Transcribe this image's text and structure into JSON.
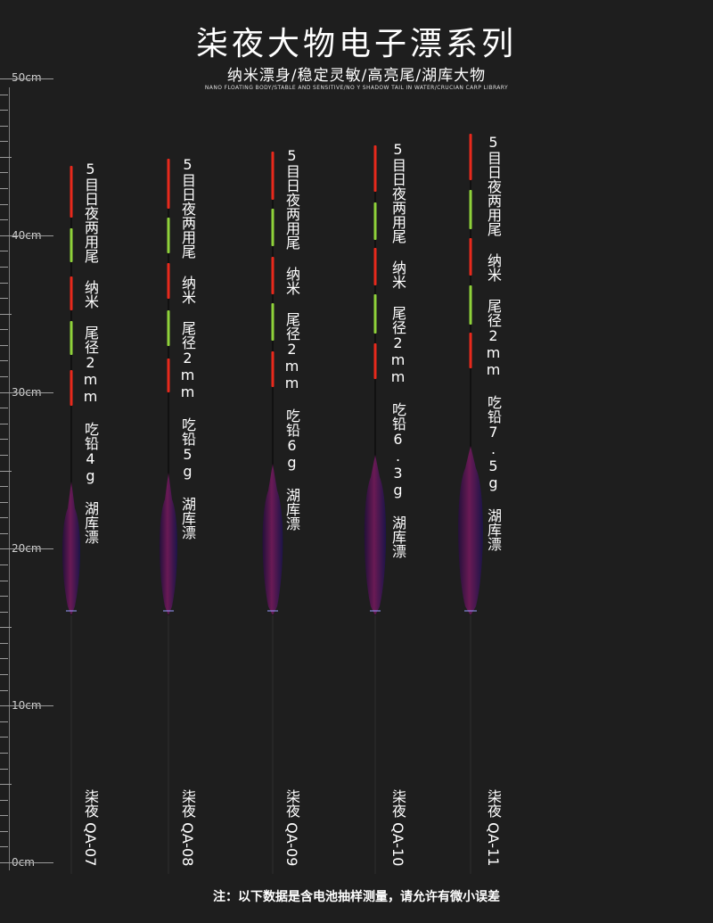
{
  "header": {
    "title": "柒夜大物电子漂系列",
    "subtitle": "纳米漂身/稳定灵敏/高亮尾/湖库大物",
    "subtitle_en": "NANO FLOATING BODY/STABLE AND SENSITIVE/NO Y SHADOW TAIL IN WATER/CRUCIAN CARP LIBRARY"
  },
  "ruler": {
    "labels": [
      "50cm",
      "40cm",
      "30cm",
      "20cm",
      "10cm",
      "0cm"
    ]
  },
  "colors": {
    "background": "#1e1e1e",
    "tail_red": "#e8291c",
    "tail_green": "#8fd23a",
    "tail_black": "#0a0a0a",
    "body": "#4a1240",
    "body_dark": "#1c1448"
  },
  "floats": [
    {
      "spec": "5目日夜两用尾 纳米 尾径2mm 吃铅4g 湖库漂",
      "brand": "柒夜",
      "model": "QA-07"
    },
    {
      "spec": "5目日夜两用尾 纳米 尾径2mm 吃铅5g 湖库漂",
      "brand": "柒夜",
      "model": "QA-08"
    },
    {
      "spec": "5目日夜两用尾 纳米 尾径2mm 吃铅6g 湖库漂",
      "brand": "柒夜",
      "model": "QA-09"
    },
    {
      "spec": "5目日夜两用尾 纳米 尾径2mm 吃铅6.3g 湖库漂",
      "brand": "柒夜",
      "model": "QA-10"
    },
    {
      "spec": "5目日夜两用尾 纳米 尾径2mm 吃铅7.5g 湖库漂",
      "brand": "柒夜",
      "model": "QA-11"
    }
  ],
  "footer": {
    "note": "注：以下数据是含电池抽样测量，请允许有微小误差"
  }
}
